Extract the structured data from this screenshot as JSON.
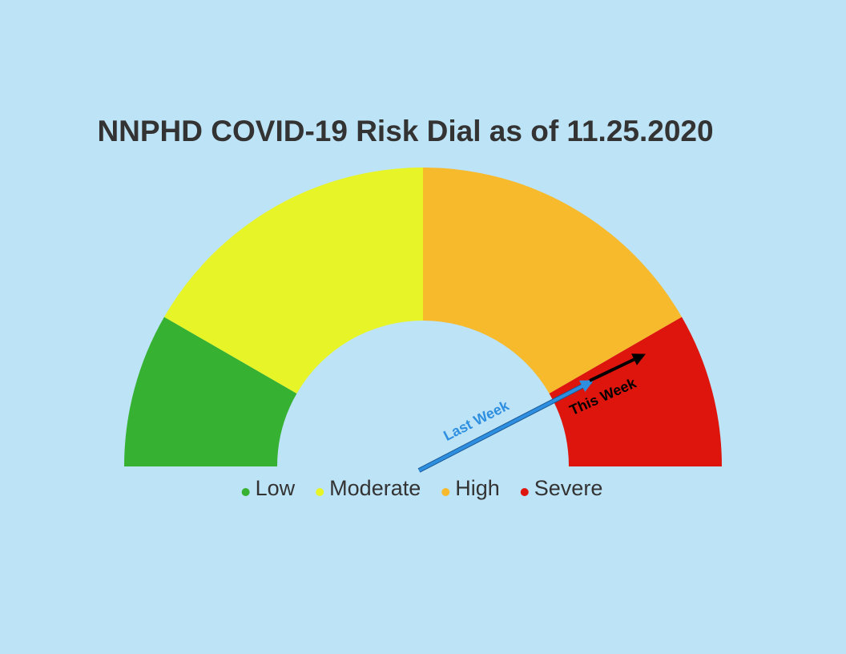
{
  "chart_data": {
    "type": "gauge",
    "title": "NNPHD COVID-19 Risk Dial as of 11.25.2020",
    "categories": [
      "Low",
      "Moderate",
      "High",
      "Severe"
    ],
    "values": [
      30,
      60,
      60,
      30
    ],
    "colors": [
      "#36b132",
      "#e6f428",
      "#f6ba2c",
      "#de150d"
    ],
    "annotations": [
      "Last Week",
      "This Week"
    ]
  }
}
